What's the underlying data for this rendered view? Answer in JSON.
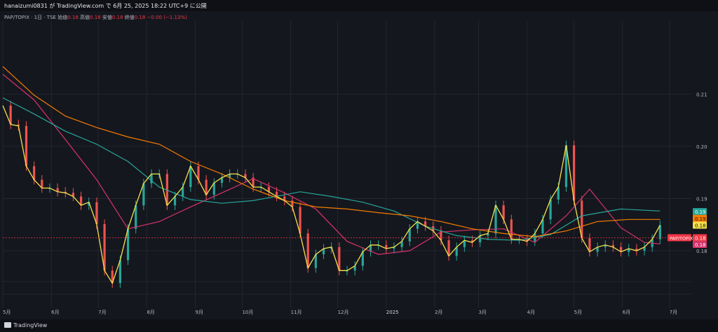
{
  "header": {
    "publish_line": "hanaizumi0831 が TradingView.com で 6月 25, 2025 18:22 UTC+9 に公開"
  },
  "legend": {
    "symbol_line": "PAP/TOPIX · 1日 · TSE",
    "open_label": "始値",
    "open_value": "0.18",
    "high_label": "高値",
    "high_value": "0.18",
    "low_label": "安値",
    "low_value": "0.18",
    "close_label": "終値",
    "close_value": "0.18",
    "change": "−0.00 (−1.13%)"
  },
  "footer": {
    "brand": "TradingView"
  },
  "colors": {
    "background": "#15171e",
    "grid": "#232631",
    "up": "#26a69a",
    "down": "#ef5350",
    "ma_yellow": "#f5e14b",
    "ma_pink": "#d6336c",
    "ma_teal": "#26a69a",
    "ma_orange": "#f57c00",
    "price_tag": "#f23645"
  },
  "chart_data": {
    "type": "candlestick",
    "symbol_tag": "PAP/TOPIX",
    "x_tick_labels": [
      "5月",
      "6月",
      "7月",
      "8月",
      "9月",
      "10月",
      "11月",
      "12月",
      "2025",
      "2月",
      "3月",
      "4月",
      "5月",
      "6月",
      "7月"
    ],
    "x_range": [
      "2024-05-01",
      "2025-07-15"
    ],
    "y_range": [
      0.169,
      0.224
    ],
    "y_tick_labels": [
      "0.21",
      "0.20",
      "0.19",
      "0.18"
    ],
    "y_tick_values": [
      0.21,
      0.2,
      0.19,
      0.18
    ],
    "price_scale_tags": [
      {
        "value": 0.1875,
        "label": "0.19",
        "color": "#26a69a"
      },
      {
        "value": 0.1862,
        "label": "0.19",
        "color": "#f57c00"
      },
      {
        "value": 0.1849,
        "label": "0.18",
        "color": "#f5e14b"
      },
      {
        "value": 0.1825,
        "label": "0.18",
        "color": "#f23645"
      },
      {
        "value": 0.1812,
        "label": "0.18",
        "color": "#d6336c"
      }
    ],
    "grid": true,
    "closes": [
      [
        "2024-05-01",
        0.2078
      ],
      [
        "2024-05-06",
        0.2042
      ],
      [
        "2024-05-11",
        0.2039
      ],
      [
        "2024-05-16",
        0.1962
      ],
      [
        "2024-05-21",
        0.1936
      ],
      [
        "2024-05-26",
        0.192
      ],
      [
        "2024-05-31",
        0.192
      ],
      [
        "2024-06-05",
        0.1913
      ],
      [
        "2024-06-10",
        0.1911
      ],
      [
        "2024-06-15",
        0.1904
      ],
      [
        "2024-06-20",
        0.1887
      ],
      [
        "2024-06-25",
        0.1893
      ],
      [
        "2024-06-30",
        0.1851
      ],
      [
        "2024-07-05",
        0.1762
      ],
      [
        "2024-07-10",
        0.1738
      ],
      [
        "2024-07-15",
        0.1782
      ],
      [
        "2024-07-20",
        0.1842
      ],
      [
        "2024-07-25",
        0.1887
      ],
      [
        "2024-07-30",
        0.1929
      ],
      [
        "2024-08-04",
        0.1947
      ],
      [
        "2024-08-09",
        0.1947
      ],
      [
        "2024-08-14",
        0.1887
      ],
      [
        "2024-08-19",
        0.1904
      ],
      [
        "2024-08-24",
        0.1922
      ],
      [
        "2024-08-29",
        0.1962
      ],
      [
        "2024-09-03",
        0.1936
      ],
      [
        "2024-09-08",
        0.1907
      ],
      [
        "2024-09-13",
        0.193
      ],
      [
        "2024-09-18",
        0.194
      ],
      [
        "2024-09-23",
        0.1947
      ],
      [
        "2024-09-28",
        0.1947
      ],
      [
        "2024-10-03",
        0.194
      ],
      [
        "2024-10-08",
        0.1922
      ],
      [
        "2024-10-13",
        0.1922
      ],
      [
        "2024-10-18",
        0.1913
      ],
      [
        "2024-10-23",
        0.1904
      ],
      [
        "2024-10-28",
        0.1896
      ],
      [
        "2024-11-02",
        0.1884
      ],
      [
        "2024-11-07",
        0.1833
      ],
      [
        "2024-11-12",
        0.1767
      ],
      [
        "2024-11-17",
        0.1793
      ],
      [
        "2024-11-22",
        0.1804
      ],
      [
        "2024-11-27",
        0.1807
      ],
      [
        "2024-12-02",
        0.1762
      ],
      [
        "2024-12-07",
        0.1762
      ],
      [
        "2024-12-12",
        0.1771
      ],
      [
        "2024-12-17",
        0.1798
      ],
      [
        "2024-12-22",
        0.1811
      ],
      [
        "2024-12-27",
        0.1811
      ],
      [
        "2025-01-01",
        0.1804
      ],
      [
        "2025-01-06",
        0.1807
      ],
      [
        "2025-01-11",
        0.1818
      ],
      [
        "2025-01-16",
        0.1842
      ],
      [
        "2025-01-21",
        0.1856
      ],
      [
        "2025-01-26",
        0.1847
      ],
      [
        "2025-01-31",
        0.1838
      ],
      [
        "2025-02-05",
        0.182
      ],
      [
        "2025-02-10",
        0.179
      ],
      [
        "2025-02-15",
        0.1807
      ],
      [
        "2025-02-20",
        0.182
      ],
      [
        "2025-02-25",
        0.1816
      ],
      [
        "2025-03-02",
        0.1829
      ],
      [
        "2025-03-07",
        0.1833
      ],
      [
        "2025-03-12",
        0.1887
      ],
      [
        "2025-03-17",
        0.186
      ],
      [
        "2025-03-22",
        0.1822
      ],
      [
        "2025-03-27",
        0.1822
      ],
      [
        "2025-04-01",
        0.1818
      ],
      [
        "2025-04-06",
        0.1833
      ],
      [
        "2025-04-11",
        0.186
      ],
      [
        "2025-04-16",
        0.1898
      ],
      [
        "2025-04-21",
        0.1922
      ],
      [
        "2025-04-26",
        0.2002
      ],
      [
        "2025-05-01",
        0.1896
      ],
      [
        "2025-05-06",
        0.1824
      ],
      [
        "2025-05-11",
        0.1798
      ],
      [
        "2025-05-16",
        0.1807
      ],
      [
        "2025-05-21",
        0.1811
      ],
      [
        "2025-05-26",
        0.1807
      ],
      [
        "2025-05-31",
        0.1798
      ],
      [
        "2025-06-05",
        0.1804
      ],
      [
        "2025-06-10",
        0.18
      ],
      [
        "2025-06-15",
        0.1807
      ],
      [
        "2025-06-20",
        0.1822
      ],
      [
        "2025-06-25",
        0.1849
      ]
    ],
    "moving_averages": [
      {
        "color": "#d6336c",
        "points": [
          [
            "2024-05-01",
            0.2138
          ],
          [
            "2024-05-21",
            0.2089
          ],
          [
            "2024-06-10",
            0.2013
          ],
          [
            "2024-06-30",
            0.1936
          ],
          [
            "2024-07-20",
            0.1842
          ],
          [
            "2024-08-09",
            0.1856
          ],
          [
            "2024-08-29",
            0.1884
          ],
          [
            "2024-09-18",
            0.1911
          ],
          [
            "2024-10-08",
            0.1938
          ],
          [
            "2024-10-28",
            0.1911
          ],
          [
            "2024-11-17",
            0.188
          ],
          [
            "2024-12-07",
            0.1818
          ],
          [
            "2024-12-27",
            0.1793
          ],
          [
            "2025-01-16",
            0.18
          ],
          [
            "2025-02-05",
            0.1836
          ],
          [
            "2025-02-25",
            0.184
          ],
          [
            "2025-03-17",
            0.1842
          ],
          [
            "2025-04-06",
            0.1816
          ],
          [
            "2025-04-26",
            0.1867
          ],
          [
            "2025-05-11",
            0.1918
          ],
          [
            "2025-05-31",
            0.1844
          ],
          [
            "2025-06-15",
            0.1816
          ],
          [
            "2025-06-25",
            0.1813
          ]
        ]
      },
      {
        "color": "#26a69a",
        "points": [
          [
            "2024-05-01",
            0.2093
          ],
          [
            "2024-05-21",
            0.2062
          ],
          [
            "2024-06-10",
            0.2029
          ],
          [
            "2024-06-30",
            0.2004
          ],
          [
            "2024-07-20",
            0.1971
          ],
          [
            "2024-08-09",
            0.1922
          ],
          [
            "2024-08-29",
            0.1898
          ],
          [
            "2024-09-18",
            0.1891
          ],
          [
            "2024-10-08",
            0.1896
          ],
          [
            "2024-10-28",
            0.1907
          ],
          [
            "2024-11-07",
            0.1913
          ],
          [
            "2024-11-27",
            0.1904
          ],
          [
            "2024-12-17",
            0.1893
          ],
          [
            "2025-01-06",
            0.1876
          ],
          [
            "2025-01-26",
            0.1847
          ],
          [
            "2025-02-15",
            0.1829
          ],
          [
            "2025-03-07",
            0.1822
          ],
          [
            "2025-03-27",
            0.182
          ],
          [
            "2025-04-16",
            0.1831
          ],
          [
            "2025-05-06",
            0.1867
          ],
          [
            "2025-05-31",
            0.188
          ],
          [
            "2025-06-25",
            0.1876
          ]
        ]
      },
      {
        "color": "#f57c00",
        "points": [
          [
            "2024-05-01",
            0.2153
          ],
          [
            "2024-05-21",
            0.2098
          ],
          [
            "2024-06-10",
            0.2058
          ],
          [
            "2024-06-30",
            0.2036
          ],
          [
            "2024-07-20",
            0.2018
          ],
          [
            "2024-08-09",
            0.2004
          ],
          [
            "2024-08-29",
            0.1971
          ],
          [
            "2024-09-18",
            0.1947
          ],
          [
            "2024-10-08",
            0.1918
          ],
          [
            "2024-10-28",
            0.1896
          ],
          [
            "2024-11-17",
            0.1884
          ],
          [
            "2024-12-07",
            0.188
          ],
          [
            "2024-12-27",
            0.1873
          ],
          [
            "2025-01-16",
            0.1867
          ],
          [
            "2025-02-05",
            0.1856
          ],
          [
            "2025-02-25",
            0.1842
          ],
          [
            "2025-03-17",
            0.1833
          ],
          [
            "2025-04-06",
            0.1827
          ],
          [
            "2025-04-26",
            0.1838
          ],
          [
            "2025-05-16",
            0.1856
          ],
          [
            "2025-06-05",
            0.186
          ],
          [
            "2025-06-25",
            0.186
          ]
        ]
      }
    ]
  }
}
